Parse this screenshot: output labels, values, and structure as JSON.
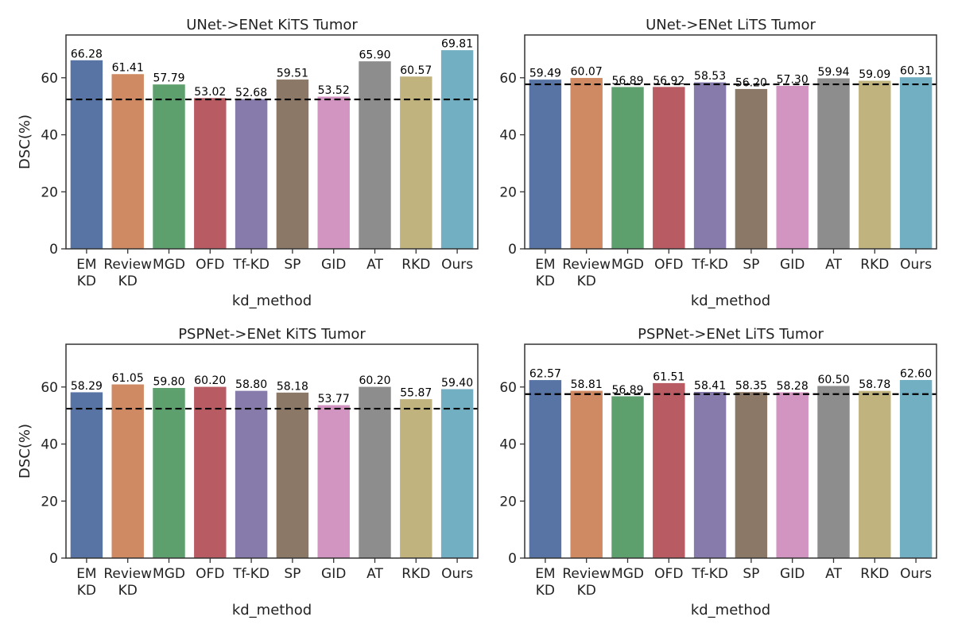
{
  "colors": {
    "bars": [
      "#5874a4",
      "#d08a63",
      "#5e9f6e",
      "#b85b63",
      "#877bab",
      "#8c7867",
      "#d294c0",
      "#8d8d8d",
      "#c0b37e",
      "#72afc3"
    ],
    "baseline": "#000000",
    "axis": "#333333"
  },
  "chart_data": [
    {
      "type": "bar",
      "title": "UNet->ENet KiTS Tumor",
      "xlabel": "kd_method",
      "ylabel": "DSC(%)",
      "categories": [
        "EM\nKD",
        "Review\nKD",
        "MGD",
        "OFD",
        "Tf-KD",
        "SP",
        "GID",
        "AT",
        "RKD",
        "Ours"
      ],
      "values": [
        66.28,
        61.41,
        57.79,
        53.02,
        52.68,
        59.51,
        53.52,
        65.9,
        60.57,
        69.81
      ],
      "value_labels": [
        "66.28",
        "61.41",
        "57.79",
        "53.02",
        "52.68",
        "59.51",
        "53.52",
        "65.90",
        "60.57",
        "69.81"
      ],
      "baseline": 52.4,
      "ylim": [
        0,
        75
      ],
      "yticks": [
        0,
        20,
        40,
        60
      ]
    },
    {
      "type": "bar",
      "title": "UNet->ENet LiTS Tumor",
      "xlabel": "kd_method",
      "ylabel": "",
      "categories": [
        "EM\nKD",
        "Review\nKD",
        "MGD",
        "OFD",
        "Tf-KD",
        "SP",
        "GID",
        "AT",
        "RKD",
        "Ours"
      ],
      "values": [
        59.49,
        60.07,
        56.89,
        56.92,
        58.53,
        56.2,
        57.3,
        59.94,
        59.09,
        60.31
      ],
      "value_labels": [
        "59.49",
        "60.07",
        "56.89",
        "56.92",
        "58.53",
        "56.20",
        "57.30",
        "59.94",
        "59.09",
        "60.31"
      ],
      "baseline": 57.7,
      "ylim": [
        0,
        75
      ],
      "yticks": [
        0,
        20,
        40,
        60
      ]
    },
    {
      "type": "bar",
      "title": "PSPNet->ENet KiTS Tumor",
      "xlabel": "kd_method",
      "ylabel": "DSC(%)",
      "categories": [
        "EM\nKD",
        "Review\nKD",
        "MGD",
        "OFD",
        "Tf-KD",
        "SP",
        "GID",
        "AT",
        "RKD",
        "Ours"
      ],
      "values": [
        58.29,
        61.05,
        59.8,
        60.2,
        58.8,
        58.18,
        53.77,
        60.2,
        55.87,
        59.4
      ],
      "value_labels": [
        "58.29",
        "61.05",
        "59.80",
        "60.20",
        "58.80",
        "58.18",
        "53.77",
        "60.20",
        "55.87",
        "59.40"
      ],
      "baseline": 52.4,
      "ylim": [
        0,
        75
      ],
      "yticks": [
        0,
        20,
        40,
        60
      ]
    },
    {
      "type": "bar",
      "title": "PSPNet->ENet LiTS Tumor",
      "xlabel": "kd_method",
      "ylabel": "",
      "categories": [
        "EM\nKD",
        "Review\nKD",
        "MGD",
        "OFD",
        "Tf-KD",
        "SP",
        "GID",
        "AT",
        "RKD",
        "Ours"
      ],
      "values": [
        62.57,
        58.81,
        56.89,
        61.51,
        58.41,
        58.35,
        58.28,
        60.5,
        58.78,
        62.6
      ],
      "value_labels": [
        "62.57",
        "58.81",
        "56.89",
        "61.51",
        "58.41",
        "58.35",
        "58.28",
        "60.50",
        "58.78",
        "62.60"
      ],
      "baseline": 57.5,
      "ylim": [
        0,
        75
      ],
      "yticks": [
        0,
        20,
        40,
        60
      ]
    }
  ]
}
